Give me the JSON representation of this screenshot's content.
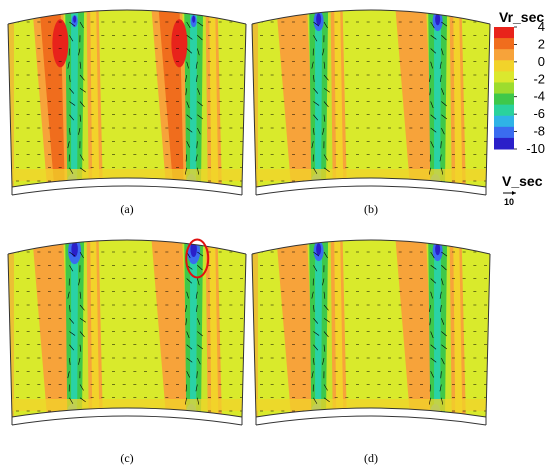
{
  "chart_data": {
    "type": "heatmap",
    "variable": "Vr_sec",
    "colorbar": {
      "title": "Vr_sec",
      "ticks": [
        4,
        2,
        0,
        -2,
        -4,
        -6,
        -8,
        -10
      ],
      "colors": [
        "#e8231b",
        "#f06d1d",
        "#f7a33a",
        "#f2d32a",
        "#dbe82e",
        "#9ddc2e",
        "#3ec84a",
        "#2ad29c",
        "#2fb3e6",
        "#3a6cf0",
        "#2a1fc9"
      ],
      "range": [
        -10,
        4
      ]
    },
    "reference_vector": {
      "label": "V_sec",
      "value": "10"
    },
    "panels": [
      {
        "label": "(a)",
        "dominant_background": "#d9ea2c",
        "highlight_ellipse": false
      },
      {
        "label": "(b)",
        "dominant_background": "#d9ea2c",
        "highlight_ellipse": false
      },
      {
        "label": "(c)",
        "dominant_background": "#d9ea2c",
        "highlight_ellipse": true
      },
      {
        "label": "(d)",
        "dominant_background": "#d9ea2c",
        "highlight_ellipse": false
      }
    ]
  }
}
